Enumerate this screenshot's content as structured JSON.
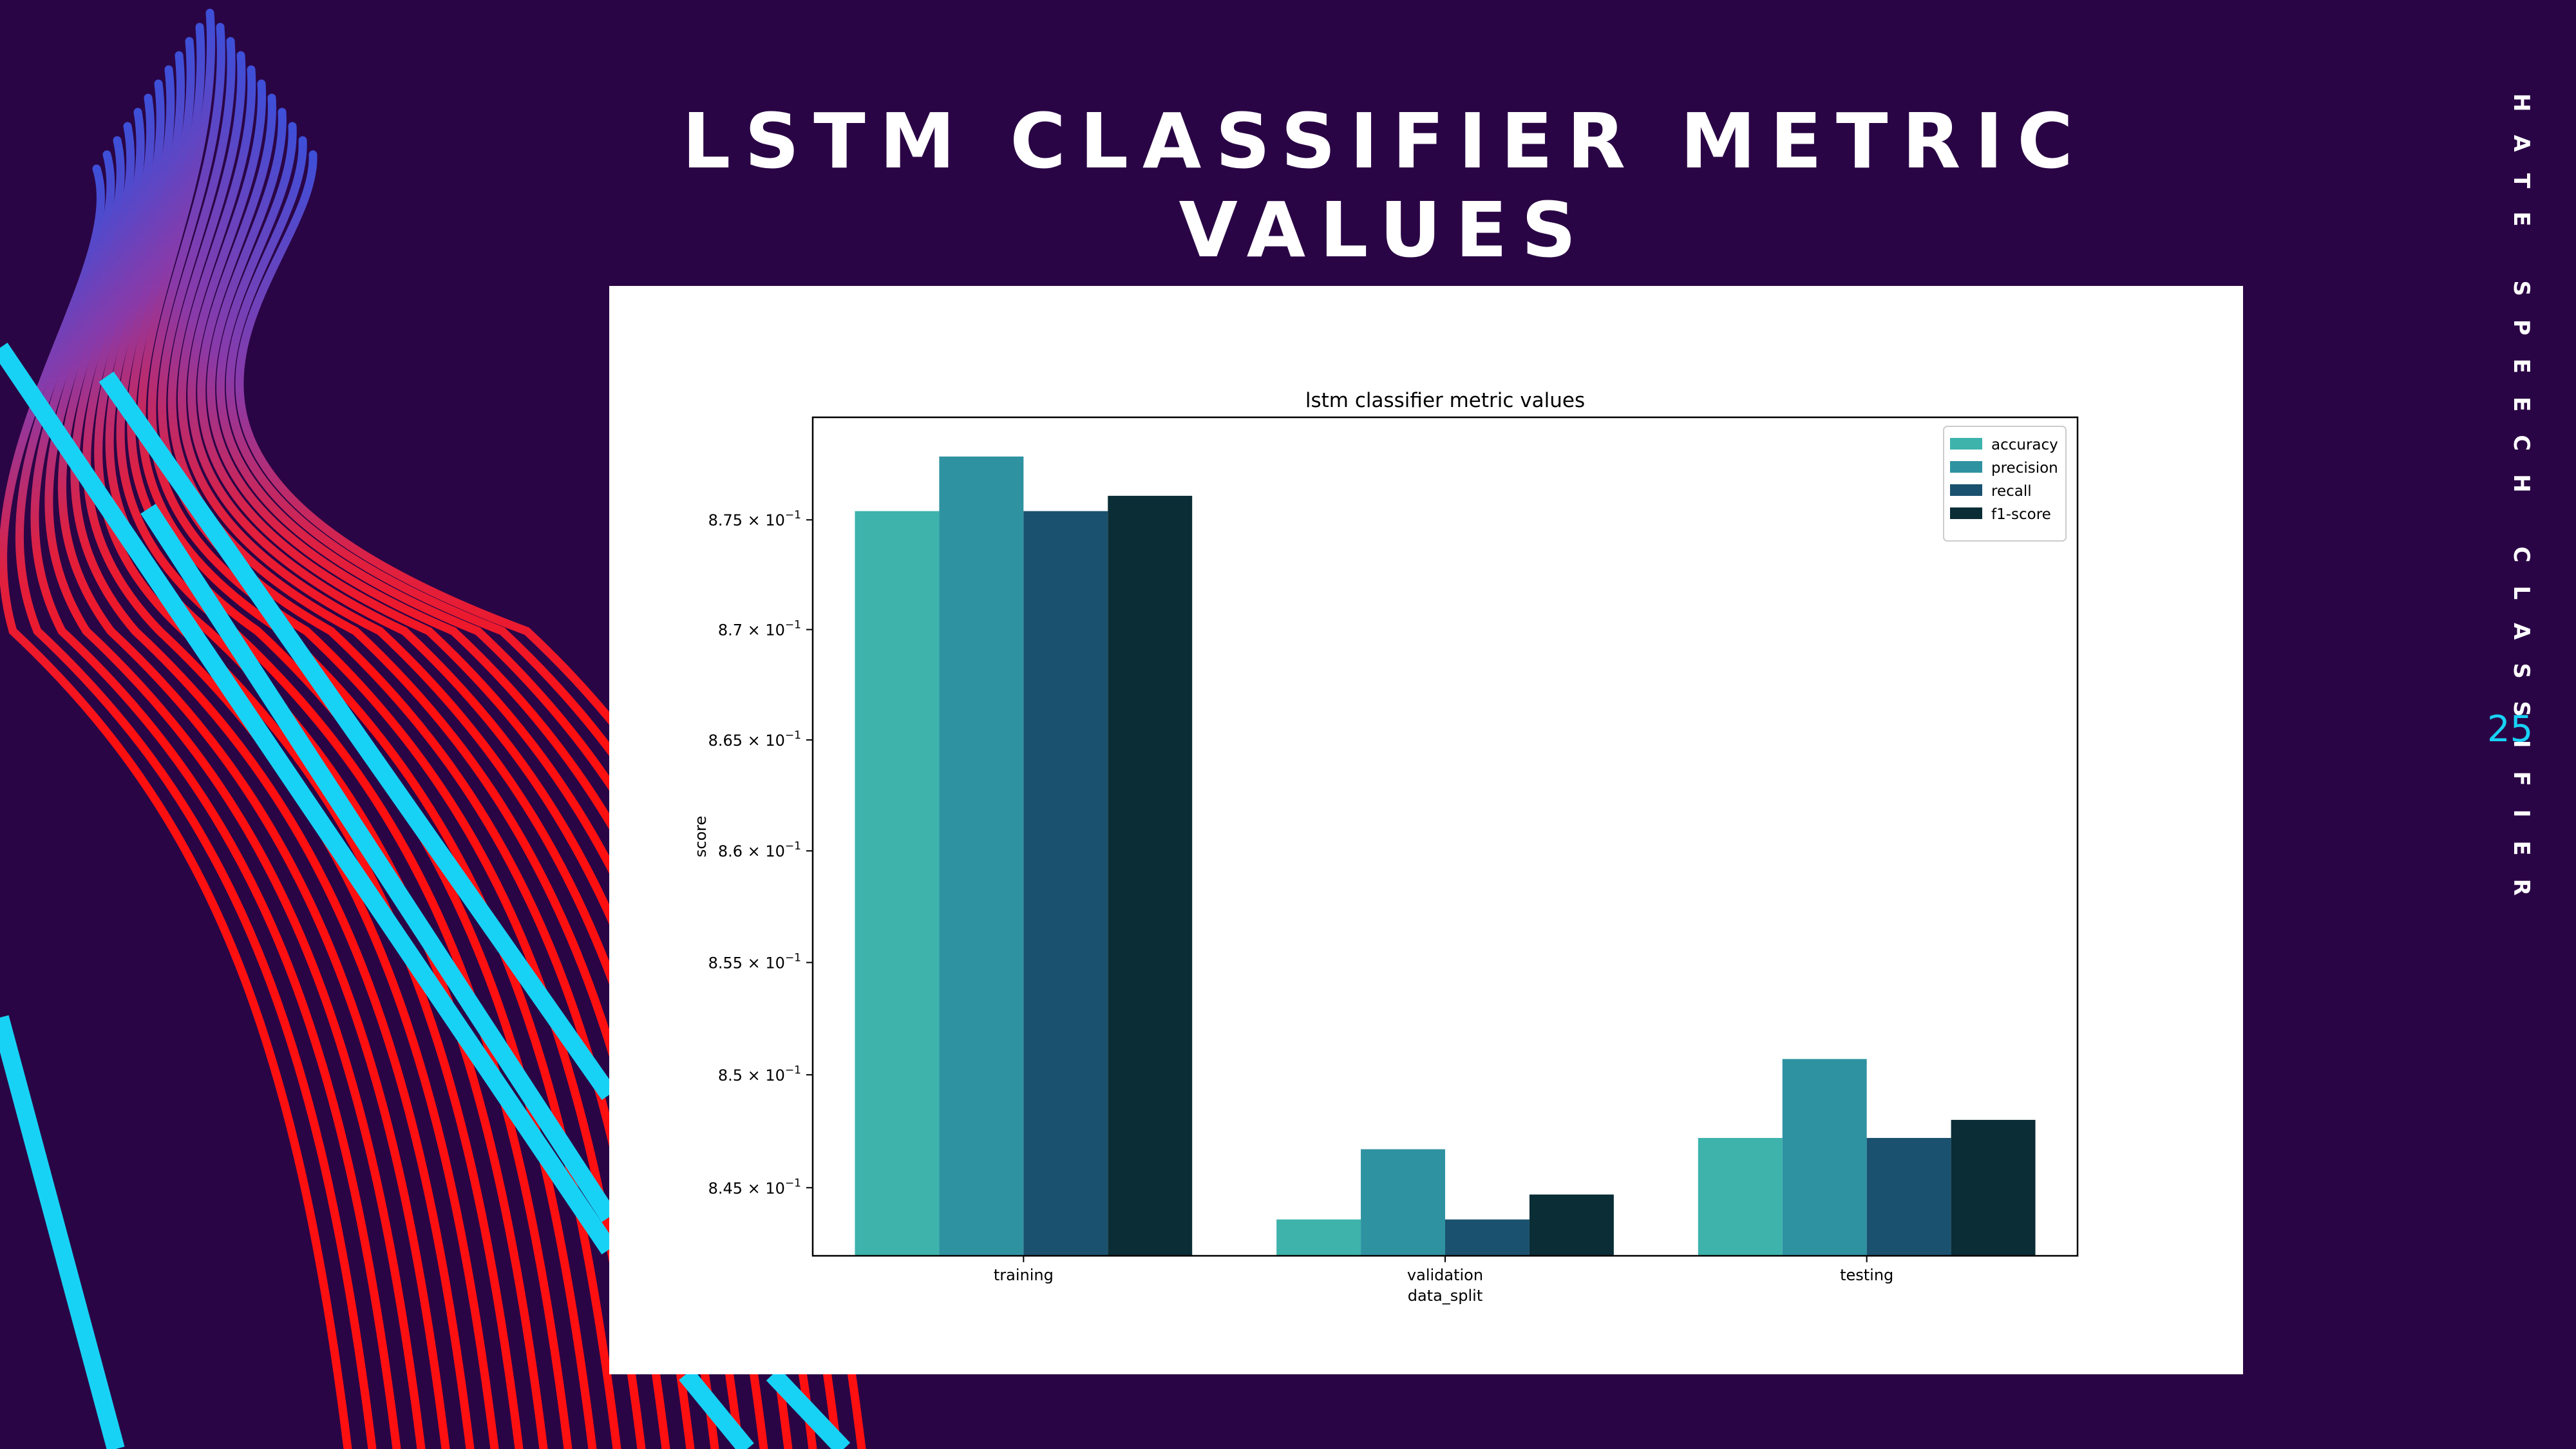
{
  "slide": {
    "title": "LSTM CLASSIFIER METRIC VALUES",
    "side_text": "HATE SPEECH CLASSIFIER",
    "page_number": "25",
    "colors": {
      "background": "#2a0545",
      "accent_cyan": "#18d2f5",
      "accent_red": "#ff1010"
    }
  },
  "chart_data": {
    "type": "bar",
    "title": "lstm classifier metric values",
    "xlabel": "data_split",
    "ylabel": "score",
    "categories": [
      "training",
      "validation",
      "testing"
    ],
    "series": [
      {
        "name": "accuracy",
        "color": "#3db3ac",
        "values": [
          0.8754,
          0.8436,
          0.8472
        ]
      },
      {
        "name": "precision",
        "color": "#2e92a1",
        "values": [
          0.8779,
          0.8467,
          0.8507
        ]
      },
      {
        "name": "recall",
        "color": "#1a516e",
        "values": [
          0.8754,
          0.8436,
          0.8472
        ]
      },
      {
        "name": "f1-score",
        "color": "#0a2d36",
        "values": [
          0.8761,
          0.8447,
          0.848
        ]
      }
    ],
    "y_scale": "log",
    "ylim": [
      0.842,
      0.8797
    ],
    "yticks": [
      {
        "value": 0.845,
        "mantissa": "8.45"
      },
      {
        "value": 0.85,
        "mantissa": "8.5"
      },
      {
        "value": 0.855,
        "mantissa": "8.55"
      },
      {
        "value": 0.86,
        "mantissa": "8.6"
      },
      {
        "value": 0.865,
        "mantissa": "8.65"
      },
      {
        "value": 0.87,
        "mantissa": "8.7"
      },
      {
        "value": 0.875,
        "mantissa": "8.75"
      }
    ],
    "ytick_suffix": "× 10",
    "ytick_exponent": "−1",
    "grid": false,
    "legend_position": "top-right"
  }
}
